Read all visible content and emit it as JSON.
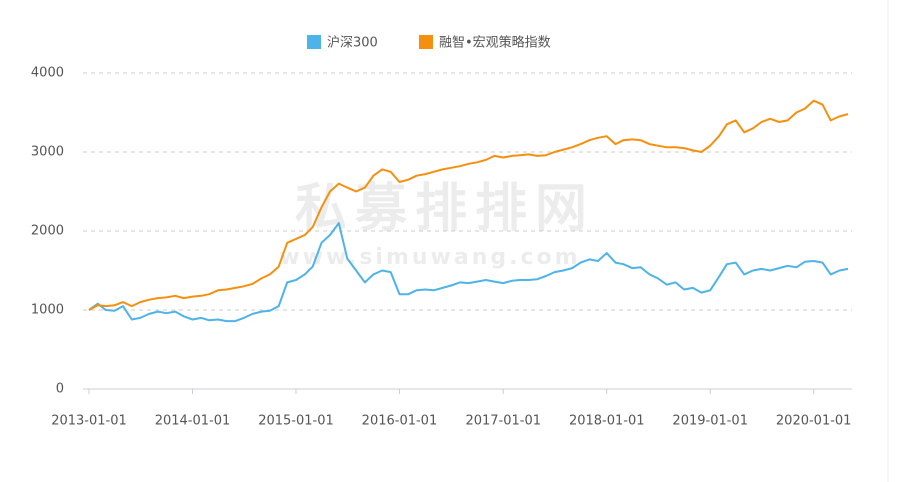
{
  "chart_data": {
    "type": "line",
    "watermark": "私募排排网",
    "watermark_url": "www.simuwang.com",
    "x": [
      "2013-01-01",
      "2013-02-01",
      "2013-03-01",
      "2013-04-01",
      "2013-05-01",
      "2013-06-01",
      "2013-07-01",
      "2013-08-01",
      "2013-09-01",
      "2013-10-01",
      "2013-11-01",
      "2013-12-01",
      "2014-01-01",
      "2014-02-01",
      "2014-03-01",
      "2014-04-01",
      "2014-05-01",
      "2014-06-01",
      "2014-07-01",
      "2014-08-01",
      "2014-09-01",
      "2014-10-01",
      "2014-11-01",
      "2014-12-01",
      "2015-01-01",
      "2015-02-01",
      "2015-03-01",
      "2015-04-01",
      "2015-05-01",
      "2015-06-01",
      "2015-07-01",
      "2015-08-01",
      "2015-09-01",
      "2015-10-01",
      "2015-11-01",
      "2015-12-01",
      "2016-01-01",
      "2016-02-01",
      "2016-03-01",
      "2016-04-01",
      "2016-05-01",
      "2016-06-01",
      "2016-07-01",
      "2016-08-01",
      "2016-09-01",
      "2016-10-01",
      "2016-11-01",
      "2016-12-01",
      "2017-01-01",
      "2017-02-01",
      "2017-03-01",
      "2017-04-01",
      "2017-05-01",
      "2017-06-01",
      "2017-07-01",
      "2017-08-01",
      "2017-09-01",
      "2017-10-01",
      "2017-11-01",
      "2017-12-01",
      "2018-01-01",
      "2018-02-01",
      "2018-03-01",
      "2018-04-01",
      "2018-05-01",
      "2018-06-01",
      "2018-07-01",
      "2018-08-01",
      "2018-09-01",
      "2018-10-01",
      "2018-11-01",
      "2018-12-01",
      "2019-01-01",
      "2019-02-01",
      "2019-03-01",
      "2019-04-01",
      "2019-05-01",
      "2019-06-01",
      "2019-07-01",
      "2019-08-01",
      "2019-09-01",
      "2019-10-01",
      "2019-11-01",
      "2019-12-01",
      "2020-01-01",
      "2020-02-01",
      "2020-03-01",
      "2020-04-01",
      "2020-05-01"
    ],
    "series": [
      {
        "name": "沪深300",
        "color": "#4eb3e8",
        "values": [
          1000,
          1080,
          1000,
          990,
          1050,
          880,
          900,
          950,
          980,
          960,
          980,
          920,
          880,
          900,
          870,
          880,
          860,
          860,
          900,
          950,
          980,
          990,
          1050,
          1350,
          1380,
          1450,
          1550,
          1850,
          1950,
          2100,
          1650,
          1500,
          1350,
          1450,
          1500,
          1480,
          1200,
          1200,
          1250,
          1260,
          1250,
          1280,
          1310,
          1350,
          1340,
          1360,
          1380,
          1360,
          1340,
          1370,
          1380,
          1380,
          1390,
          1430,
          1480,
          1500,
          1530,
          1600,
          1640,
          1620,
          1720,
          1600,
          1580,
          1530,
          1540,
          1450,
          1400,
          1320,
          1350,
          1260,
          1280,
          1220,
          1250,
          1420,
          1580,
          1600,
          1450,
          1500,
          1520,
          1500,
          1530,
          1560,
          1540,
          1610,
          1620,
          1600,
          1450,
          1500,
          1520
        ]
      },
      {
        "name": "融智•宏观策略指数",
        "color": "#f5900f",
        "values": [
          1000,
          1060,
          1050,
          1060,
          1100,
          1050,
          1100,
          1130,
          1150,
          1160,
          1180,
          1150,
          1170,
          1180,
          1200,
          1250,
          1260,
          1280,
          1300,
          1330,
          1400,
          1450,
          1550,
          1850,
          1900,
          1950,
          2050,
          2300,
          2500,
          2600,
          2550,
          2500,
          2550,
          2700,
          2780,
          2750,
          2620,
          2650,
          2700,
          2720,
          2750,
          2780,
          2800,
          2820,
          2850,
          2870,
          2900,
          2950,
          2930,
          2950,
          2960,
          2970,
          2950,
          2960,
          3000,
          3030,
          3060,
          3100,
          3150,
          3180,
          3200,
          3100,
          3150,
          3160,
          3150,
          3100,
          3080,
          3060,
          3060,
          3050,
          3020,
          3000,
          3080,
          3200,
          3350,
          3400,
          3250,
          3300,
          3380,
          3420,
          3380,
          3400,
          3500,
          3550,
          3650,
          3600,
          3400,
          3450,
          3480
        ]
      }
    ],
    "xlim": [
      "2013-01-01",
      "2020-05-01"
    ],
    "xticks": [
      "2013-01-01",
      "2014-01-01",
      "2015-01-01",
      "2016-01-01",
      "2017-01-01",
      "2018-01-01",
      "2019-01-01",
      "2020-01-01"
    ],
    "ylim": [
      0,
      4000
    ],
    "yticks": [
      0,
      1000,
      2000,
      3000,
      4000
    ],
    "grid": true,
    "legend": "top"
  }
}
